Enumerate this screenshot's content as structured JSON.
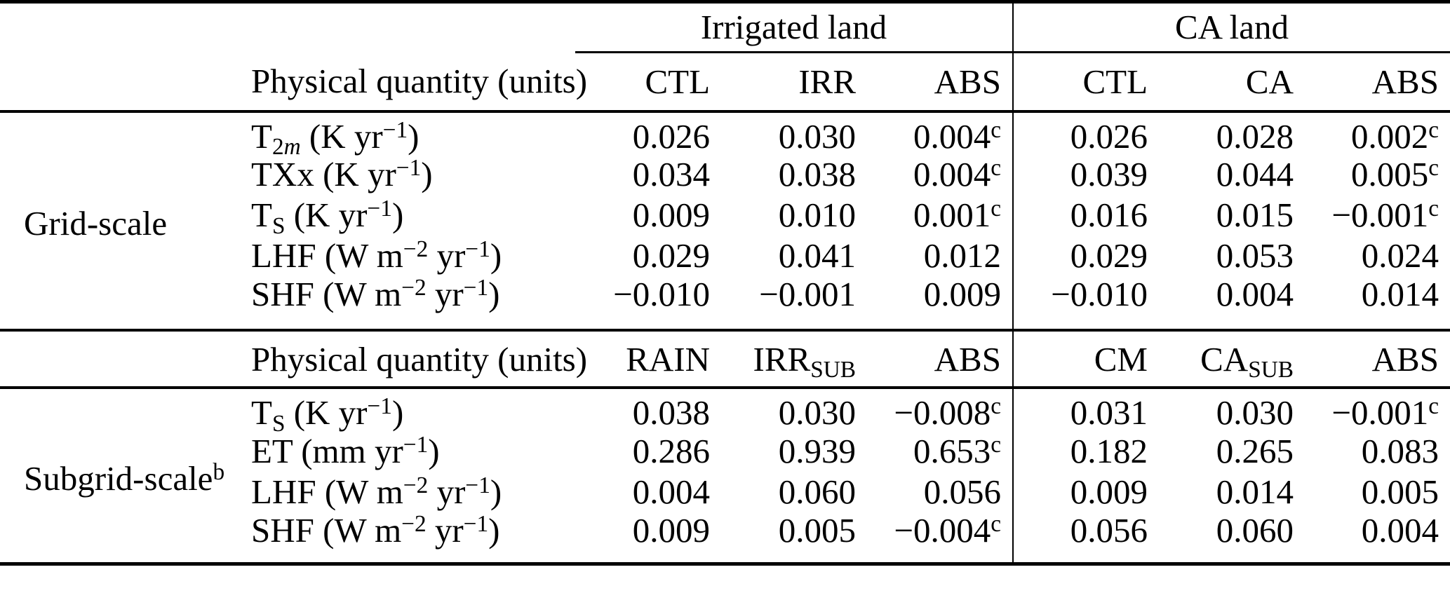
{
  "page": {
    "background": "#ffffff",
    "text_color": "#000000",
    "rule_color": "#000000"
  },
  "table": {
    "group_header": {
      "irrigated": "Irrigated land",
      "ca": "CA land"
    },
    "header_grid": {
      "quantity": "Physical quantity (units)",
      "cols": [
        "CTL",
        "IRR",
        "ABS",
        "CTL",
        "CA",
        "ABS"
      ]
    },
    "header_subgrid": {
      "quantity": "Physical quantity (units)",
      "cols": [
        [
          {
            "t": "RAIN"
          }
        ],
        [
          {
            "t": "IRR"
          },
          {
            "s": "sub",
            "t": "SUB"
          }
        ],
        [
          {
            "t": "ABS"
          }
        ],
        [
          {
            "t": "CM"
          }
        ],
        [
          {
            "t": "CA"
          },
          {
            "s": "sub",
            "t": "SUB"
          }
        ],
        [
          {
            "t": "ABS"
          }
        ]
      ]
    },
    "sections": [
      {
        "label": [
          {
            "t": "Grid-scale"
          }
        ],
        "rows": [
          {
            "quantity": [
              {
                "t": "T"
              },
              {
                "s": "sub",
                "t": "2"
              },
              {
                "s": "sub",
                "t": "m",
                "i": true
              },
              {
                "t": " (K yr"
              },
              {
                "s": "sup",
                "t": "−1"
              },
              {
                "t": ")"
              }
            ],
            "values": [
              "0.026",
              "0.030",
              [
                {
                  "t": "0.004"
                },
                {
                  "s": "sup",
                  "t": "c"
                }
              ],
              "0.026",
              "0.028",
              [
                {
                  "t": "0.002"
                },
                {
                  "s": "sup",
                  "t": "c"
                }
              ]
            ]
          },
          {
            "quantity": [
              {
                "t": "TXx (K yr"
              },
              {
                "s": "sup",
                "t": "−1"
              },
              {
                "t": ")"
              }
            ],
            "values": [
              "0.034",
              "0.038",
              [
                {
                  "t": "0.004"
                },
                {
                  "s": "sup",
                  "t": "c"
                }
              ],
              "0.039",
              "0.044",
              [
                {
                  "t": "0.005"
                },
                {
                  "s": "sup",
                  "t": "c"
                }
              ]
            ]
          },
          {
            "quantity": [
              {
                "t": "T"
              },
              {
                "s": "sub",
                "t": "S"
              },
              {
                "t": " (K yr"
              },
              {
                "s": "sup",
                "t": "−1"
              },
              {
                "t": ")"
              }
            ],
            "values": [
              "0.009",
              "0.010",
              [
                {
                  "t": "0.001"
                },
                {
                  "s": "sup",
                  "t": "c"
                }
              ],
              "0.016",
              "0.015",
              [
                {
                  "t": "−0.001"
                },
                {
                  "s": "sup",
                  "t": "c"
                }
              ]
            ]
          },
          {
            "quantity": [
              {
                "t": "LHF (W m"
              },
              {
                "s": "sup",
                "t": "−2"
              },
              {
                "t": " yr"
              },
              {
                "s": "sup",
                "t": "−1"
              },
              {
                "t": ")"
              }
            ],
            "values": [
              "0.029",
              "0.041",
              "0.012",
              "0.029",
              "0.053",
              "0.024"
            ]
          },
          {
            "quantity": [
              {
                "t": "SHF (W m"
              },
              {
                "s": "sup",
                "t": "−2"
              },
              {
                "t": " yr"
              },
              {
                "s": "sup",
                "t": "−1"
              },
              {
                "t": ")"
              }
            ],
            "values": [
              "−0.010",
              "−0.001",
              "0.009",
              "−0.010",
              "0.004",
              "0.014"
            ]
          }
        ]
      },
      {
        "label": [
          {
            "t": "Subgrid-scale"
          },
          {
            "s": "sup",
            "t": "b"
          }
        ],
        "rows": [
          {
            "quantity": [
              {
                "t": "T"
              },
              {
                "s": "sub",
                "t": "S"
              },
              {
                "t": " (K yr"
              },
              {
                "s": "sup",
                "t": "−1"
              },
              {
                "t": ")"
              }
            ],
            "values": [
              "0.038",
              "0.030",
              [
                {
                  "t": "−0.008"
                },
                {
                  "s": "sup",
                  "t": "c"
                }
              ],
              "0.031",
              "0.030",
              [
                {
                  "t": "−0.001"
                },
                {
                  "s": "sup",
                  "t": "c"
                }
              ]
            ]
          },
          {
            "quantity": [
              {
                "t": "ET (mm yr"
              },
              {
                "s": "sup",
                "t": "−1"
              },
              {
                "t": ")"
              }
            ],
            "values": [
              "0.286",
              "0.939",
              [
                {
                  "t": "0.653"
                },
                {
                  "s": "sup",
                  "t": "c"
                }
              ],
              "0.182",
              "0.265",
              "0.083"
            ]
          },
          {
            "quantity": [
              {
                "t": "LHF (W m"
              },
              {
                "s": "sup",
                "t": "−2"
              },
              {
                "t": " yr"
              },
              {
                "s": "sup",
                "t": "−1"
              },
              {
                "t": ")"
              }
            ],
            "values": [
              "0.004",
              "0.060",
              "0.056",
              "0.009",
              "0.014",
              "0.005"
            ]
          },
          {
            "quantity": [
              {
                "t": "SHF (W m"
              },
              {
                "s": "sup",
                "t": "−2"
              },
              {
                "t": " yr"
              },
              {
                "s": "sup",
                "t": "−1"
              },
              {
                "t": ")"
              }
            ],
            "values": [
              "0.009",
              "0.005",
              [
                {
                  "t": "−0.004"
                },
                {
                  "s": "sup",
                  "t": "c"
                }
              ],
              "0.056",
              "0.060",
              "0.004"
            ]
          }
        ]
      }
    ]
  }
}
